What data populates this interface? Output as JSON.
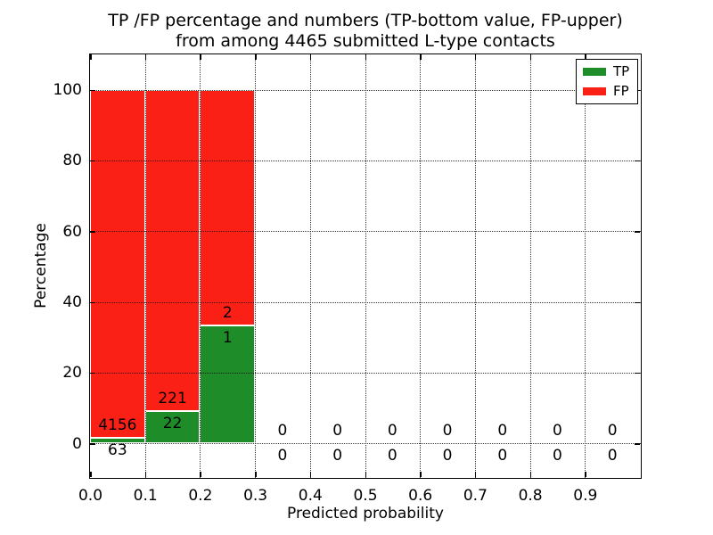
{
  "figure": {
    "title": {
      "line1": "TP /FP percentage and numbers (TP-bottom value, FP-upper)",
      "line2": "from among 4465 submitted L-type contacts"
    }
  },
  "chart_data": {
    "type": "bar",
    "stacked": true,
    "title": "TP /FP percentage and numbers (TP-bottom value, FP-upper) from among 4465 submitted L-type contacts",
    "xlabel": "Predicted probability",
    "ylabel": "Percentage",
    "total_contacts": 4465,
    "xlim": [
      0.0,
      1.0
    ],
    "ylim": [
      -9.5,
      110.0
    ],
    "bin_width": 0.1,
    "grid": true,
    "x_tick_labels": [
      "0.0",
      "0.1",
      "0.2",
      "0.3",
      "0.4",
      "0.5",
      "0.6",
      "0.7",
      "0.8",
      "0.9"
    ],
    "x_tick_values": [
      0.0,
      0.1,
      0.2,
      0.3,
      0.4,
      0.5,
      0.6,
      0.7,
      0.8,
      0.9
    ],
    "y_tick_labels": [
      "0",
      "20",
      "40",
      "60",
      "80",
      "100"
    ],
    "y_tick_values": [
      0,
      20,
      40,
      60,
      80,
      100
    ],
    "grid_x_values": [
      0.1,
      0.2,
      0.3,
      0.4,
      0.5,
      0.6,
      0.7,
      0.8,
      0.9
    ],
    "grid_y_values": [
      0,
      20,
      40,
      60,
      80,
      100
    ],
    "bins": [
      {
        "x0": 0.0,
        "x1": 0.1,
        "tp": 63,
        "fp": 4156,
        "tp_pct": 1.49,
        "fp_pct": 98.51
      },
      {
        "x0": 0.1,
        "x1": 0.2,
        "tp": 22,
        "fp": 221,
        "tp_pct": 9.05,
        "fp_pct": 90.95
      },
      {
        "x0": 0.2,
        "x1": 0.3,
        "tp": 1,
        "fp": 2,
        "tp_pct": 33.33,
        "fp_pct": 66.67
      },
      {
        "x0": 0.3,
        "x1": 0.4,
        "tp": 0,
        "fp": 0,
        "tp_pct": 0,
        "fp_pct": 0
      },
      {
        "x0": 0.4,
        "x1": 0.5,
        "tp": 0,
        "fp": 0,
        "tp_pct": 0,
        "fp_pct": 0
      },
      {
        "x0": 0.5,
        "x1": 0.6,
        "tp": 0,
        "fp": 0,
        "tp_pct": 0,
        "fp_pct": 0
      },
      {
        "x0": 0.6,
        "x1": 0.7,
        "tp": 0,
        "fp": 0,
        "tp_pct": 0,
        "fp_pct": 0
      },
      {
        "x0": 0.7,
        "x1": 0.8,
        "tp": 0,
        "fp": 0,
        "tp_pct": 0,
        "fp_pct": 0
      },
      {
        "x0": 0.8,
        "x1": 0.9,
        "tp": 0,
        "fp": 0,
        "tp_pct": 0,
        "fp_pct": 0
      },
      {
        "x0": 0.9,
        "x1": 1.0,
        "tp": 0,
        "fp": 0,
        "tp_pct": 0,
        "fp_pct": 0
      }
    ],
    "legend": {
      "position": "upper right",
      "items": [
        {
          "label": "TP",
          "color": "#1e8c28"
        },
        {
          "label": "FP",
          "color": "#fb2015"
        }
      ]
    },
    "colors": {
      "tp": "#1e8c28",
      "fp": "#fb2015",
      "bar_edge": "#ffffff",
      "grid": "#000000",
      "text": "#000000",
      "background": "#ffffff"
    }
  }
}
